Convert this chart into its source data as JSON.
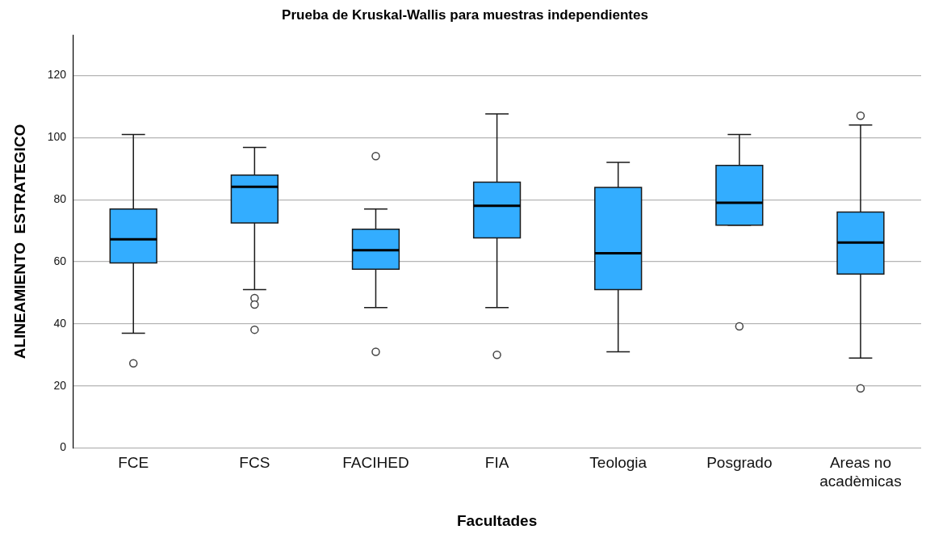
{
  "chart_data": {
    "type": "box",
    "title": "Prueba de Kruskal-Wallis para muestras independientes",
    "xlabel": "Facultades",
    "ylabel": "ALINEAMIENTO  ESTRATEGICO",
    "categories": [
      "FCE",
      "FCS",
      "FACIHED",
      "FIA",
      "Teologia",
      "Posgrado",
      "Areas no acadèmicas"
    ],
    "color": "#33adff",
    "boxes": [
      {
        "low": 37,
        "q1": 59.6,
        "median": 67.2,
        "q3": 77,
        "high": 101,
        "outliers": [
          27.3
        ]
      },
      {
        "low": 51,
        "q1": 72.5,
        "median": 84.1,
        "q3": 87.9,
        "high": 96.8,
        "outliers": [
          48.3,
          46.2,
          38.1
        ]
      },
      {
        "low": 45.2,
        "q1": 57.6,
        "median": 63.7,
        "q3": 70.5,
        "high": 77,
        "outliers": [
          94,
          31
        ]
      },
      {
        "low": 45.2,
        "q1": 67.7,
        "median": 78,
        "q3": 85.6,
        "high": 107.6,
        "outliers": [
          30
        ]
      },
      {
        "low": 31,
        "q1": 51,
        "median": 62.7,
        "q3": 83.9,
        "high": 92
      },
      {
        "low": 71.8,
        "q1": 71.8,
        "median": 79,
        "q3": 91,
        "high": 101,
        "outliers": [
          39.2
        ]
      },
      {
        "low": 29,
        "q1": 56,
        "median": 66.2,
        "q3": 76,
        "high": 104,
        "outliers": [
          107,
          19.2
        ]
      }
    ],
    "ylim": [
      0,
      133
    ],
    "yticks": [
      0,
      20,
      40,
      60,
      80,
      100,
      120
    ],
    "grid": "y",
    "legend": false,
    "marker": "circle"
  }
}
